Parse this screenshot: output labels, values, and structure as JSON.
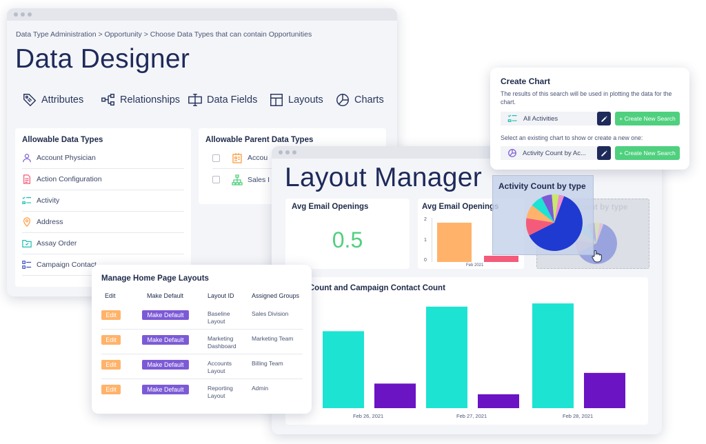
{
  "data_designer": {
    "breadcrumb": "Data Type Administration > Opportunity > Choose Data Types that can contain Opportunities",
    "title": "Data Designer",
    "nav": [
      "Attributes",
      "Relationships",
      "Data Fields",
      "Layouts",
      "Charts"
    ],
    "allowable": {
      "title": "Allowable Data Types",
      "items": [
        "Account Physician",
        "Action Configuration",
        "Activity",
        "Address",
        "Assay Order",
        "Campaign Contact"
      ]
    },
    "parents": {
      "title": "Allowable Parent Data Types",
      "items": [
        "Accou",
        "Sales I"
      ]
    }
  },
  "layout_manager": {
    "title": "Layout Manager",
    "card1": {
      "title": "Avg Email Openings",
      "value": "0.5"
    },
    "card2": {
      "title": "Avg Email Openings",
      "ticks": [
        "2",
        "1",
        "0"
      ],
      "date": "Feb 2021"
    },
    "card3_ghost_title": "Activity Count by type",
    "bottom": {
      "title": "paign Count and Campaign Contact Count",
      "dates": [
        "Feb 26, 2021",
        "Feb 27, 2021",
        "Feb 28, 2021"
      ]
    }
  },
  "create_chart": {
    "title": "Create Chart",
    "desc": "The results of this search will be used in plotting the data for the chart.",
    "search_value": "All Activities",
    "create_label": "+ Create New Search",
    "existing_desc": "Select an existing chart to show or create a new one:",
    "chart_value": "Activity Count by Ac...",
    "create_label2": "+ Create New Search"
  },
  "drag_chart": {
    "title": "Activity Count by type"
  },
  "home_layouts": {
    "title": "Manage Home Page Layouts",
    "headers": [
      "Edit",
      "Make Default",
      "Layout ID",
      "Assigned Groups"
    ],
    "rows": [
      {
        "edit": "Edit",
        "default": "Make Default",
        "id": "Baseline Layout",
        "group": "Sales Division"
      },
      {
        "edit": "Edit",
        "default": "Make Default",
        "id": "Marketing Dashboard",
        "group": "Marketing Team"
      },
      {
        "edit": "Edit",
        "default": "Make Default",
        "id": "Accounts Layout",
        "group": "Billing Team"
      },
      {
        "edit": "Edit",
        "default": "Make Default",
        "id": "Reporting Layout",
        "group": "Admin"
      }
    ]
  },
  "chart_data": [
    {
      "type": "bar",
      "title": "Avg Email Openings",
      "categories": [
        "Feb 2021"
      ],
      "series": [
        {
          "values": [
            1.9
          ]
        },
        {
          "values": [
            0.3
          ]
        }
      ],
      "ylim": [
        0,
        2
      ],
      "colors": [
        "#ffb36a",
        "#f45b7a"
      ]
    },
    {
      "type": "bar",
      "title": "paign Count and Campaign Contact Count",
      "categories": [
        "Feb 26, 2021",
        "Feb 27, 2021",
        "Feb 28, 2021"
      ],
      "series": [
        {
          "values": [
            72,
            95,
            98
          ]
        },
        {
          "values": [
            23,
            13,
            33
          ]
        }
      ],
      "ylim": [
        0,
        100
      ],
      "colors": [
        "#1de3d3",
        "#6a14c4"
      ]
    },
    {
      "type": "pie",
      "title": "Activity Count by type",
      "values": [
        62,
        10,
        8,
        7,
        6,
        4,
        3
      ],
      "colors": [
        "#1f3ad1",
        "#f45b7a",
        "#ffb36a",
        "#1de3d3",
        "#7c5ad6",
        "#c8e86a",
        "#f08bd0"
      ]
    }
  ],
  "colors": {
    "navy": "#1e2a5a",
    "green": "#4fd07e",
    "teal": "#1de3d3",
    "purple": "#6a14c4",
    "orange": "#ffb36a",
    "pink": "#f45b7a"
  }
}
